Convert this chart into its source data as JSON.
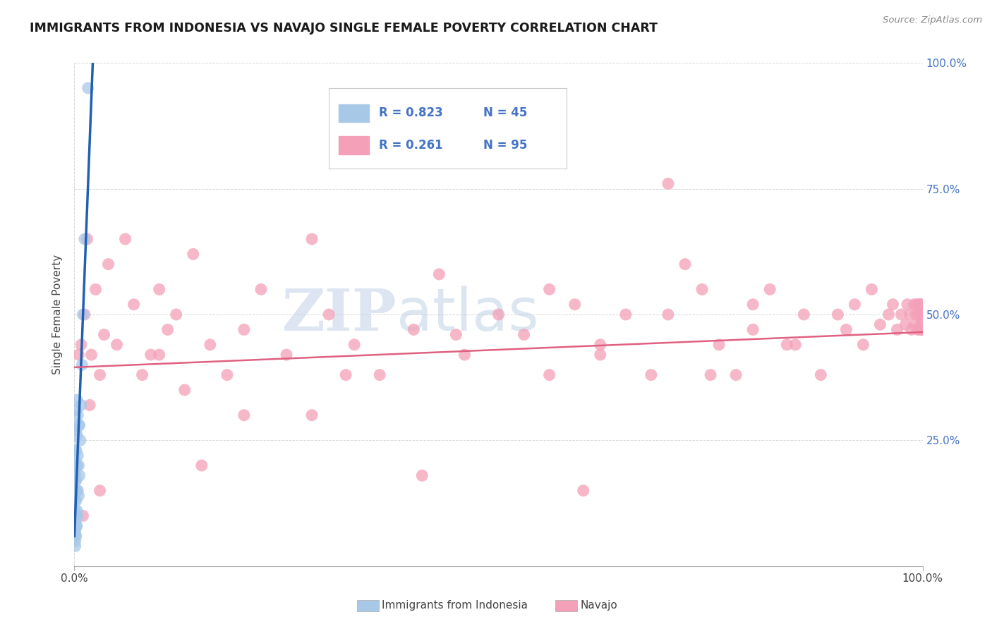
{
  "title": "IMMIGRANTS FROM INDONESIA VS NAVAJO SINGLE FEMALE POVERTY CORRELATION CHART",
  "source": "Source: ZipAtlas.com",
  "ylabel": "Single Female Poverty",
  "xlim": [
    0.0,
    1.0
  ],
  "ylim": [
    0.0,
    1.0
  ],
  "xtick_positions": [
    0.0,
    0.1,
    0.2,
    0.3,
    0.4,
    0.5,
    0.6,
    0.7,
    0.8,
    0.9,
    1.0
  ],
  "xtick_labels": [
    "0.0%",
    "",
    "",
    "",
    "",
    "",
    "",
    "",
    "",
    "",
    "100.0%"
  ],
  "ytick_positions": [
    0.25,
    0.5,
    0.75,
    1.0
  ],
  "ytick_labels_right": [
    "25.0%",
    "50.0%",
    "75.0%",
    "100.0%"
  ],
  "legend_r1": "R = 0.823",
  "legend_n1": "N = 45",
  "legend_r2": "R = 0.261",
  "legend_n2": "N = 95",
  "blue_color": "#a8c8e8",
  "pink_color": "#f4a0b8",
  "line_blue": "#2060b0",
  "line_pink": "#e06080",
  "watermark_zip": "ZIP",
  "watermark_atlas": "atlas",
  "indonesia_scatter_x": [
    0.001,
    0.001,
    0.001,
    0.001,
    0.001,
    0.001,
    0.001,
    0.001,
    0.001,
    0.001,
    0.001,
    0.001,
    0.001,
    0.001,
    0.001,
    0.002,
    0.002,
    0.002,
    0.002,
    0.002,
    0.002,
    0.002,
    0.002,
    0.002,
    0.003,
    0.003,
    0.003,
    0.003,
    0.003,
    0.003,
    0.004,
    0.004,
    0.004,
    0.004,
    0.005,
    0.005,
    0.005,
    0.006,
    0.006,
    0.007,
    0.008,
    0.009,
    0.01,
    0.012,
    0.016
  ],
  "indonesia_scatter_y": [
    0.04,
    0.05,
    0.06,
    0.07,
    0.08,
    0.09,
    0.1,
    0.11,
    0.13,
    0.15,
    0.17,
    0.18,
    0.19,
    0.21,
    0.23,
    0.06,
    0.08,
    0.1,
    0.13,
    0.17,
    0.2,
    0.23,
    0.27,
    0.31,
    0.08,
    0.11,
    0.15,
    0.2,
    0.26,
    0.33,
    0.1,
    0.15,
    0.22,
    0.3,
    0.14,
    0.2,
    0.28,
    0.18,
    0.28,
    0.25,
    0.32,
    0.4,
    0.5,
    0.65,
    0.95
  ],
  "navajo_scatter_x": [
    0.005,
    0.008,
    0.01,
    0.012,
    0.015,
    0.018,
    0.02,
    0.025,
    0.03,
    0.035,
    0.04,
    0.05,
    0.06,
    0.07,
    0.08,
    0.09,
    0.1,
    0.11,
    0.12,
    0.13,
    0.14,
    0.16,
    0.18,
    0.2,
    0.22,
    0.25,
    0.28,
    0.3,
    0.33,
    0.36,
    0.4,
    0.43,
    0.46,
    0.5,
    0.53,
    0.56,
    0.59,
    0.62,
    0.65,
    0.68,
    0.7,
    0.72,
    0.74,
    0.76,
    0.78,
    0.8,
    0.82,
    0.84,
    0.86,
    0.88,
    0.9,
    0.91,
    0.92,
    0.93,
    0.94,
    0.95,
    0.96,
    0.965,
    0.97,
    0.975,
    0.98,
    0.982,
    0.985,
    0.987,
    0.99,
    0.991,
    0.992,
    0.993,
    0.994,
    0.995,
    0.996,
    0.997,
    0.997,
    0.998,
    0.999,
    0.999,
    0.999,
    0.999,
    0.999,
    0.999,
    0.1,
    0.2,
    0.32,
    0.45,
    0.56,
    0.62,
    0.7,
    0.75,
    0.8,
    0.85,
    0.03,
    0.15,
    0.28,
    0.41,
    0.6
  ],
  "navajo_scatter_y": [
    0.42,
    0.44,
    0.1,
    0.5,
    0.65,
    0.32,
    0.42,
    0.55,
    0.38,
    0.46,
    0.6,
    0.44,
    0.65,
    0.52,
    0.38,
    0.42,
    0.55,
    0.47,
    0.5,
    0.35,
    0.62,
    0.44,
    0.38,
    0.47,
    0.55,
    0.42,
    0.65,
    0.5,
    0.44,
    0.38,
    0.47,
    0.58,
    0.42,
    0.5,
    0.46,
    0.38,
    0.52,
    0.44,
    0.5,
    0.38,
    0.76,
    0.6,
    0.55,
    0.44,
    0.38,
    0.47,
    0.55,
    0.44,
    0.5,
    0.38,
    0.5,
    0.47,
    0.52,
    0.44,
    0.55,
    0.48,
    0.5,
    0.52,
    0.47,
    0.5,
    0.48,
    0.52,
    0.5,
    0.47,
    0.52,
    0.48,
    0.5,
    0.52,
    0.47,
    0.5,
    0.52,
    0.47,
    0.52,
    0.48,
    0.5,
    0.52,
    0.47,
    0.5,
    0.48,
    0.47,
    0.42,
    0.3,
    0.38,
    0.46,
    0.55,
    0.42,
    0.5,
    0.38,
    0.52,
    0.44,
    0.15,
    0.2,
    0.3,
    0.18,
    0.15
  ]
}
